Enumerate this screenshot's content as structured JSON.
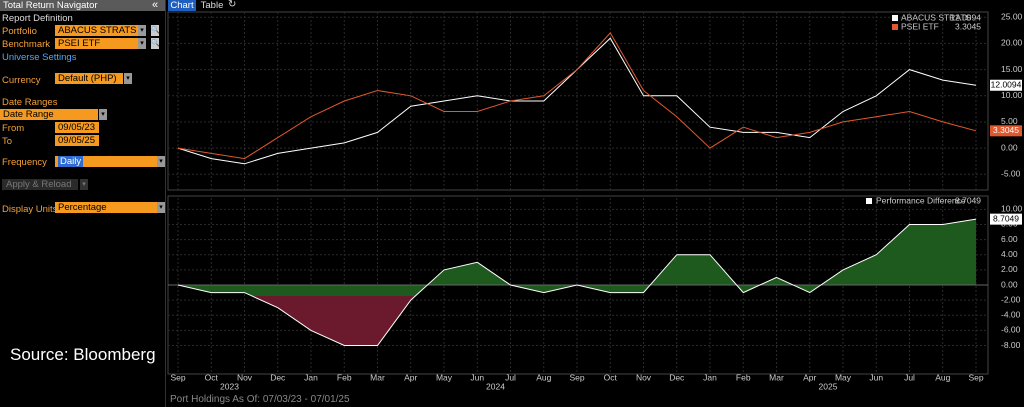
{
  "panel": {
    "title": "Total Return Navigator",
    "report_definition": "Report Definition",
    "portfolio_label": "Portfolio",
    "portfolio": "ABACUS STRATS",
    "benchmark_label": "Benchmark",
    "benchmark": "PSEI ETF",
    "universe_settings": "Universe Settings",
    "currency_label": "Currency",
    "currency": "Default (PHP)",
    "date_ranges": "Date Ranges",
    "date_range": "Date Range",
    "from_label": "From",
    "from": "09/05/23",
    "to_label": "To",
    "to": "09/05/25",
    "frequency_label": "Frequency",
    "frequency": "Daily",
    "apply": "Apply & Reload",
    "display_units_label": "Display Units",
    "display_units": "Percentage"
  },
  "tabs": [
    "Chart",
    "Table"
  ],
  "source": "Source: Bloomberg",
  "footer": "Port Holdings As Of: 07/03/23 - 07/01/25",
  "chart_data": [
    {
      "type": "line",
      "ylim": [
        -8,
        26
      ],
      "grid": true,
      "yticks": [
        {
          "value": 25,
          "label": "25.00"
        },
        {
          "value": 20,
          "label": "20.00"
        },
        {
          "value": 15,
          "label": "15.00"
        },
        {
          "value": 10,
          "label": "10.00"
        },
        {
          "value": 5,
          "label": "5.00"
        },
        {
          "value": 0,
          "label": "0.00"
        },
        {
          "value": -5,
          "label": "-5.00"
        }
      ],
      "series": [
        {
          "name": "ABACUS STRATS",
          "color": "#ffffff",
          "values": [
            0,
            -2,
            -3,
            -1,
            0,
            1,
            3,
            8,
            9,
            10,
            9,
            9,
            15,
            21,
            10,
            10,
            4,
            3,
            3,
            2,
            7,
            10,
            15,
            13,
            12.0094
          ],
          "value_labels": [
            null,
            null,
            null,
            null,
            null,
            null,
            null,
            null,
            null,
            null,
            null,
            null,
            null,
            null,
            null,
            null,
            null,
            null,
            null,
            null,
            null,
            null,
            null,
            null,
            "12.0094"
          ]
        },
        {
          "name": "PSEI ETF",
          "color": "#e0582e",
          "values": [
            0,
            -1,
            -2,
            2,
            6,
            9,
            11,
            10,
            7,
            7,
            9,
            10,
            15,
            22,
            11,
            6,
            0,
            4,
            2,
            3,
            5,
            6,
            7,
            5,
            3.3045
          ],
          "value_labels": [
            null,
            null,
            null,
            null,
            null,
            null,
            null,
            null,
            null,
            null,
            null,
            null,
            null,
            null,
            null,
            null,
            null,
            null,
            null,
            null,
            null,
            null,
            null,
            null,
            "3.3045"
          ]
        }
      ]
    },
    {
      "type": "area",
      "ylim": [
        -11.5,
        11.5
      ],
      "grid": true,
      "positive_color": "#1e5a1e",
      "negative_color": "#6a1a2c",
      "categories": [
        "Sep",
        "Oct",
        "Nov",
        "Dec",
        "Jan",
        "Feb",
        "Mar",
        "Apr",
        "May",
        "Jun",
        "Jul",
        "Aug",
        "Sep",
        "Oct",
        "Nov",
        "Dec",
        "Jan",
        "Feb",
        "Mar",
        "Apr",
        "May",
        "Jun",
        "Jul",
        "Aug",
        "Sep"
      ],
      "years": [
        null,
        null,
        "2023",
        null,
        null,
        null,
        null,
        null,
        null,
        null,
        "2024",
        null,
        null,
        null,
        null,
        null,
        null,
        null,
        null,
        null,
        "2025",
        null,
        null,
        null,
        null
      ],
      "yticks": [
        {
          "value": 10,
          "label": "10.00"
        },
        {
          "value": 8,
          "label": "8.00"
        },
        {
          "value": 6,
          "label": "6.00"
        },
        {
          "value": 4,
          "label": "4.00"
        },
        {
          "value": 2,
          "label": "2.00"
        },
        {
          "value": 0,
          "label": "0.00"
        },
        {
          "value": -2,
          "label": "-2.00"
        },
        {
          "value": -4,
          "label": "-4.00"
        },
        {
          "value": -6,
          "label": "-6.00"
        },
        {
          "value": -8,
          "label": "-8.00"
        }
      ],
      "series": [
        {
          "name": "Performance Difference",
          "color": "#ffffff",
          "values": [
            0,
            -1,
            -1,
            -3,
            -6,
            -8,
            -8,
            -2,
            2,
            3,
            0,
            -1,
            0,
            -1,
            -1,
            4,
            4,
            -1,
            1,
            -1,
            2,
            4,
            8,
            8,
            8.7049
          ],
          "value_labels": [
            null,
            null,
            null,
            null,
            null,
            null,
            null,
            null,
            null,
            null,
            null,
            null,
            null,
            null,
            null,
            null,
            null,
            null,
            null,
            null,
            null,
            null,
            null,
            null,
            "8.7049"
          ]
        }
      ]
    }
  ]
}
